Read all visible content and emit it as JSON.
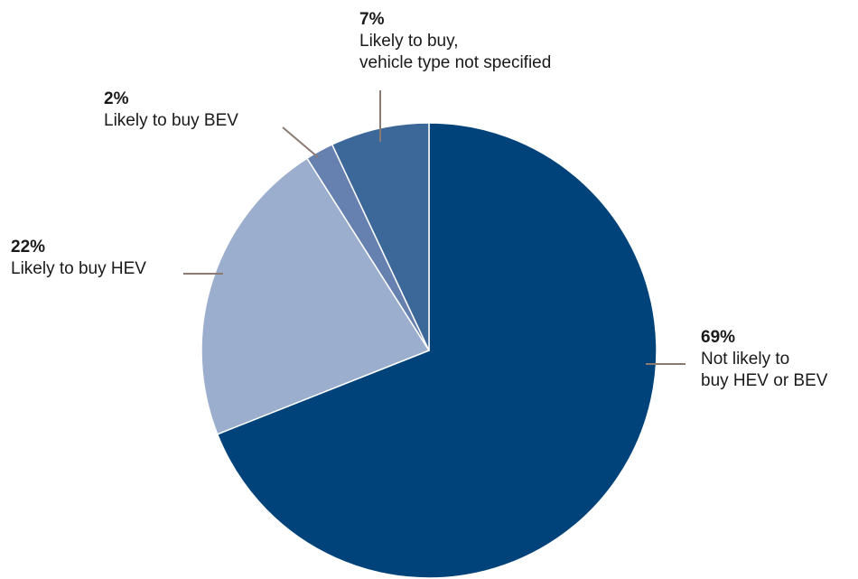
{
  "chart_data": {
    "type": "pie",
    "slices": [
      {
        "value": 69,
        "label_pct": "69%",
        "label_lines": [
          "Not likely to",
          "buy HEV or BEV"
        ],
        "color": "#00437a"
      },
      {
        "value": 22,
        "label_pct": "22%",
        "label_lines": [
          "Likely to buy HEV"
        ],
        "color": "#9caecd"
      },
      {
        "value": 2,
        "label_pct": "2%",
        "label_lines": [
          "Likely to buy BEV"
        ],
        "color": "#6680b0"
      },
      {
        "value": 7,
        "label_pct": "7%",
        "label_lines": [
          "Likely to buy,",
          "vehicle type not specified"
        ],
        "color": "#3c6799"
      }
    ],
    "start_angle": "12 o'clock",
    "direction": "clockwise",
    "leader_line_color": "#8a7a72"
  }
}
